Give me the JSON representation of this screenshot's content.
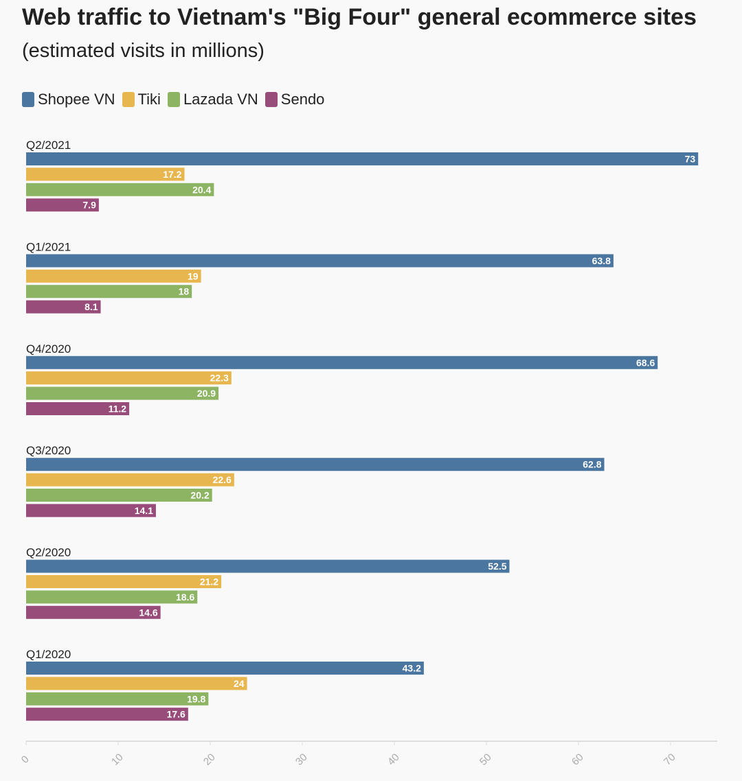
{
  "chart_data": {
    "type": "bar",
    "orientation": "horizontal",
    "title": "Web traffic to Vietnam's \"Big Four\" general ecommerce sites",
    "subtitle": "(estimated visits in millions)",
    "categories": [
      "Q2/2021",
      "Q1/2021",
      "Q4/2020",
      "Q3/2020",
      "Q2/2020",
      "Q1/2020"
    ],
    "series": [
      {
        "name": "Shopee VN",
        "color": "#4a76a0",
        "values": [
          73,
          63.8,
          68.6,
          62.8,
          52.5,
          43.2
        ]
      },
      {
        "name": "Tiki",
        "color": "#e8b64f",
        "values": [
          17.2,
          19,
          22.3,
          22.6,
          21.2,
          24
        ]
      },
      {
        "name": "Lazada VN",
        "color": "#8cb462",
        "values": [
          20.4,
          18,
          20.9,
          20.2,
          18.6,
          19.8
        ]
      },
      {
        "name": "Sendo",
        "color": "#984c7a",
        "values": [
          7.9,
          8.1,
          11.2,
          14.1,
          14.6,
          17.6
        ]
      }
    ],
    "xlim": [
      0,
      75
    ],
    "xticks": [
      0,
      10,
      20,
      30,
      40,
      50,
      60,
      70
    ],
    "legend_position": "top-left",
    "grid": false
  }
}
